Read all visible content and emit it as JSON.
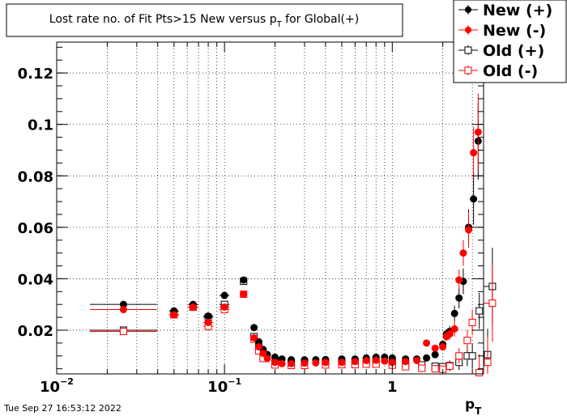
{
  "chart_data": {
    "type": "scatter",
    "title_main": "Lost rate no. of Fit Pts>15 New versus p",
    "title_sub": "T",
    "title_tail": " for Global(+)",
    "xlabel_main": "p",
    "xlabel_sub": "T",
    "ylabel": "",
    "x_scale": "log",
    "xlim": [
      0.01,
      3.5
    ],
    "ylim": [
      0.003,
      0.132
    ],
    "grid": true,
    "legend_position": "top-right",
    "x_ticks": [
      {
        "value": 0.01,
        "base": "10",
        "exp": "−2"
      },
      {
        "value": 0.1,
        "base": "10",
        "exp": "−1"
      },
      {
        "value": 1,
        "base": "1",
        "exp": ""
      }
    ],
    "y_ticks": [
      {
        "value": 0.02,
        "label": "0.02"
      },
      {
        "value": 0.04,
        "label": "0.04"
      },
      {
        "value": 0.06,
        "label": "0.06"
      },
      {
        "value": 0.08,
        "label": "0.08"
      },
      {
        "value": 0.1,
        "label": "0.1"
      },
      {
        "value": 0.12,
        "label": "0.12"
      }
    ],
    "series": [
      {
        "name": "New (+)",
        "color": "#000000",
        "marker": "filled-circle",
        "x": [
          0.025,
          0.05,
          0.065,
          0.08,
          0.1,
          0.13,
          0.15,
          0.16,
          0.17,
          0.18,
          0.2,
          0.22,
          0.25,
          0.3,
          0.35,
          0.4,
          0.5,
          0.6,
          0.7,
          0.8,
          0.9,
          1.0,
          1.2,
          1.4,
          1.6,
          1.8,
          2.0,
          2.1,
          2.2,
          2.35,
          2.5,
          2.65,
          2.85,
          3.05,
          3.25
        ],
        "y": [
          0.03,
          0.0275,
          0.03,
          0.0255,
          0.0335,
          0.0395,
          0.021,
          0.0155,
          0.0125,
          0.0105,
          0.0095,
          0.0088,
          0.0085,
          0.0085,
          0.0085,
          0.0086,
          0.0088,
          0.0088,
          0.0092,
          0.0095,
          0.0095,
          0.0092,
          0.0088,
          0.0088,
          0.0092,
          0.0105,
          0.0145,
          0.0185,
          0.0195,
          0.0265,
          0.0325,
          0.039,
          0.06,
          0.071,
          0.0935
        ],
        "err": [
          0.0006,
          0.0006,
          0.0007,
          0.0008,
          0.0008,
          0.001,
          0.0012,
          0.001,
          0.0008,
          0.0006,
          0.0005,
          0.0005,
          0.0004,
          0.0004,
          0.0004,
          0.0004,
          0.0004,
          0.0004,
          0.0005,
          0.0006,
          0.0007,
          0.0007,
          0.0008,
          0.0009,
          0.001,
          0.0012,
          0.0015,
          0.0018,
          0.0022,
          0.003,
          0.004,
          0.005,
          0.007,
          0.01,
          0.015
        ]
      },
      {
        "name": "New (-)",
        "color": "#ff0000",
        "marker": "filled-circle",
        "x": [
          0.025,
          0.05,
          0.065,
          0.08,
          0.1,
          0.13,
          0.15,
          0.16,
          0.17,
          0.18,
          0.2,
          0.22,
          0.25,
          0.3,
          0.35,
          0.4,
          0.5,
          0.6,
          0.7,
          0.8,
          0.9,
          1.0,
          1.2,
          1.4,
          1.6,
          1.8,
          2.0,
          2.1,
          2.2,
          2.35,
          2.5,
          2.65,
          2.85,
          3.05,
          3.25
        ],
        "y": [
          0.028,
          0.026,
          0.029,
          0.023,
          0.029,
          0.034,
          0.017,
          0.0135,
          0.011,
          0.009,
          0.0075,
          0.007,
          0.007,
          0.0072,
          0.0073,
          0.0075,
          0.0075,
          0.0078,
          0.0082,
          0.0083,
          0.008,
          0.0075,
          0.0078,
          0.0082,
          0.015,
          0.013,
          0.0135,
          0.0175,
          0.0185,
          0.0205,
          0.0395,
          0.05,
          0.059,
          0.089,
          0.097
        ],
        "err": [
          0.0006,
          0.0006,
          0.0007,
          0.0008,
          0.0008,
          0.001,
          0.0012,
          0.001,
          0.0008,
          0.0006,
          0.0005,
          0.0005,
          0.0004,
          0.0004,
          0.0004,
          0.0004,
          0.0004,
          0.0004,
          0.0005,
          0.0006,
          0.0007,
          0.0007,
          0.0008,
          0.0009,
          0.001,
          0.0012,
          0.0015,
          0.0018,
          0.0022,
          0.003,
          0.004,
          0.005,
          0.007,
          0.01,
          0.015
        ]
      },
      {
        "name": "Old (+)",
        "color": "#000000",
        "marker": "open-square",
        "x": [
          0.025,
          0.05,
          0.065,
          0.08,
          0.1,
          0.13,
          0.15,
          0.16,
          0.17,
          0.2,
          0.25,
          0.3,
          0.4,
          0.5,
          0.6,
          0.7,
          0.8,
          1.0,
          1.2,
          1.5,
          1.8,
          2.0,
          2.2,
          2.5,
          2.8,
          3.0,
          3.3,
          3.7,
          3.95
        ],
        "y": [
          0.02,
          0.026,
          0.029,
          0.025,
          0.03,
          0.039,
          0.0175,
          0.0135,
          0.0095,
          0.0072,
          0.0072,
          0.0073,
          0.0074,
          0.0075,
          0.0076,
          0.0078,
          0.0078,
          0.0074,
          0.007,
          0.0065,
          0.006,
          0.0058,
          0.0062,
          0.0075,
          0.01,
          0.01,
          0.0275,
          0.0105,
          0.037
        ],
        "err": [
          0.0006,
          0.0006,
          0.0007,
          0.0008,
          0.0008,
          0.001,
          0.0012,
          0.001,
          0.0008,
          0.0005,
          0.0004,
          0.0004,
          0.0004,
          0.0004,
          0.0004,
          0.0005,
          0.0006,
          0.0007,
          0.0008,
          0.001,
          0.0012,
          0.0015,
          0.002,
          0.003,
          0.004,
          0.005,
          0.007,
          0.01,
          0.015
        ]
      },
      {
        "name": "Old (-)",
        "color": "#ff0000",
        "marker": "open-square",
        "x": [
          0.025,
          0.05,
          0.065,
          0.08,
          0.1,
          0.13,
          0.15,
          0.16,
          0.17,
          0.2,
          0.25,
          0.3,
          0.4,
          0.5,
          0.6,
          0.7,
          0.8,
          1.0,
          1.2,
          1.5,
          1.8,
          2.0,
          2.2,
          2.5,
          2.8,
          3.0,
          3.3,
          3.7,
          3.95
        ],
        "y": [
          0.0195,
          0.026,
          0.029,
          0.0215,
          0.028,
          0.034,
          0.0165,
          0.012,
          0.009,
          0.0065,
          0.0063,
          0.0063,
          0.0065,
          0.0066,
          0.0066,
          0.0068,
          0.0068,
          0.0064,
          0.0058,
          0.0052,
          0.005,
          0.0048,
          0.006,
          0.01,
          0.016,
          0.023,
          0.0035,
          0.0075,
          0.0305
        ],
        "err": [
          0.0006,
          0.0006,
          0.0007,
          0.0008,
          0.0008,
          0.001,
          0.0012,
          0.001,
          0.0008,
          0.0005,
          0.0004,
          0.0004,
          0.0004,
          0.0004,
          0.0004,
          0.0005,
          0.0006,
          0.0007,
          0.0008,
          0.001,
          0.0012,
          0.0015,
          0.002,
          0.003,
          0.004,
          0.005,
          0.007,
          0.01,
          0.015
        ]
      }
    ]
  },
  "footer": {
    "timestamp": "Tue Sep 27 16:53:12 2022"
  }
}
